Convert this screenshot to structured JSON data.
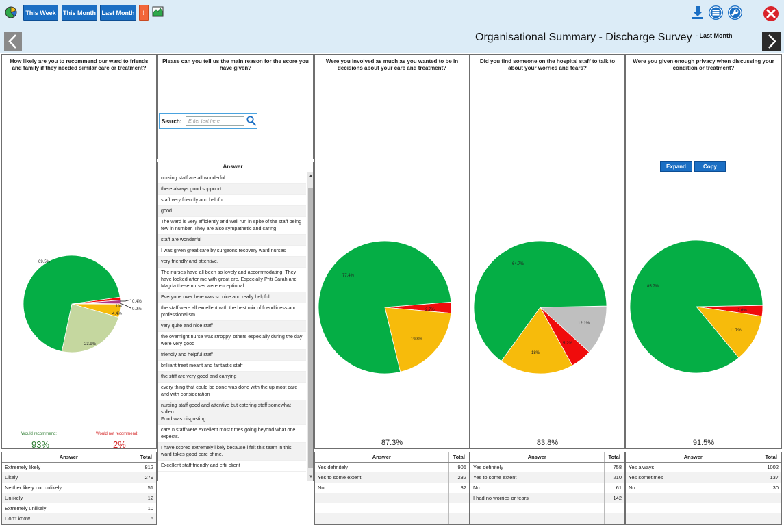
{
  "toolbar": {
    "this_week": "This Week",
    "this_month": "This Month",
    "last_month": "Last Month",
    "alert": "!"
  },
  "header": {
    "title": "Organisational Summary - Discharge Survey",
    "subtitle": "- Last Month"
  },
  "colors": {
    "green": "#05ae45",
    "light_green": "#c5d79f",
    "amber": "#f7bb0b",
    "red": "#f00c0c",
    "grey": "#bfbfbf",
    "toolbar_bg": "#dcecf7",
    "button_blue": "#1b6fc4"
  },
  "q1": {
    "question": "How likely are you to recommend our ward to friends and family if they needed similar care or treatment?",
    "would_recommend_label": "Would recommend:",
    "would_recommend_value": "93%",
    "would_not_label": "Would not recommend:",
    "would_not_value": "2%",
    "pie_labels": [
      "69.5%",
      "23.9%",
      "4.4%",
      "1%",
      "0.4%",
      "0.9%"
    ],
    "table": {
      "head_answer": "Answer",
      "head_total": "Total",
      "rows": [
        {
          "answer": "Extremely likely",
          "total": "812"
        },
        {
          "answer": "Likely",
          "total": "279"
        },
        {
          "answer": "Neither likely nor unlikely",
          "total": "51"
        },
        {
          "answer": "Unlikely",
          "total": "12"
        },
        {
          "answer": "Extremely unlikely",
          "total": "10"
        },
        {
          "answer": "Don't know",
          "total": "5"
        }
      ]
    }
  },
  "q2": {
    "question": "Please can you tell us the main reason for the score you have given?",
    "search_label": "Search:",
    "search_placeholder": "Enter text here",
    "list_header": "Answer",
    "comments": [
      "nursing staff are all wonderful",
      "there always good soppourt",
      "staff very friendly and helpful",
      "good",
      "The ward is very efficiently and well run in spite of  the staff being few in number.  They are also sympathetic and caring",
      "staff are wonderful",
      "I was given great care by surgeons recovery ward nurses",
      "very friendly and attentive.",
      "The nurses have all been so lovely and accommodating. They have looked after me with great are. Especially Priti Sarah and Magda these nurses were exceptional.",
      "Everyone over here was so nice and really helpful.",
      "the staff were all excellent with the best mix of friendliness and professionalism.",
      "very quite and nice staff",
      "the overnight nurse was stroppy. others especially during the day were very good",
      "friendly and helpful staff",
      "brilliant treat meant and fantastic staff",
      "the stiff are very good and carrying",
      "every thing that could be done was done with the up most care and with consideration",
      "nursing staff good and attentive but catering staff somewhat sullen.\nFood was disgusting.",
      "care n staff were excellent most times going beyond what one expects.",
      "I have scored extremely likely because i felt this team in this ward takes good care of me.",
      "Excellent staff friendly and effii client"
    ]
  },
  "q3": {
    "question": "Were you involved as much as you wanted to be in decisions about your care and treatment?",
    "summary": "87.3%",
    "pie_labels": [
      "77.4%",
      "19.8%",
      "2.7%"
    ],
    "table": {
      "head_answer": "Answer",
      "head_total": "Total",
      "rows": [
        {
          "answer": "Yes definitely",
          "total": "905"
        },
        {
          "answer": "Yes to some extent",
          "total": "232"
        },
        {
          "answer": "No",
          "total": "32"
        }
      ]
    }
  },
  "q4": {
    "question": "Did you find someone on the hospital staff to talk to about your worries and fears?",
    "summary": "83.8%",
    "pie_labels": [
      "64.7%",
      "18%",
      "5.2%",
      "12.1%"
    ],
    "table": {
      "head_answer": "Answer",
      "head_total": "Total",
      "rows": [
        {
          "answer": "Yes definitely",
          "total": "758"
        },
        {
          "answer": "Yes to some extent",
          "total": "210"
        },
        {
          "answer": "No",
          "total": "61"
        },
        {
          "answer": "I had no worries or fears",
          "total": "142"
        }
      ]
    }
  },
  "q5": {
    "question": "Were you given enough privacy when discussing your condition or treatment?",
    "expand": "Expand",
    "copy": "Copy",
    "summary": "91.5%",
    "pie_labels": [
      "85.7%",
      "11.7%",
      "2.6%"
    ],
    "table": {
      "head_answer": "Answer",
      "head_total": "Total",
      "rows": [
        {
          "answer": "Yes always",
          "total": "1002"
        },
        {
          "answer": "Yes sometimes",
          "total": "137"
        },
        {
          "answer": "No",
          "total": "30"
        }
      ]
    }
  },
  "chart_data": [
    {
      "type": "pie",
      "title": "How likely are you to recommend our ward to friends and family if they needed similar care or treatment?",
      "categories": [
        "Extremely likely",
        "Likely",
        "Neither likely nor unlikely",
        "Unlikely",
        "Extremely unlikely",
        "Don't know"
      ],
      "values": [
        69.5,
        23.9,
        4.4,
        1.0,
        0.9,
        0.4
      ]
    },
    {
      "type": "pie",
      "title": "Were you involved as much as you wanted to be in decisions about your care and treatment?",
      "categories": [
        "Yes definitely",
        "Yes to some extent",
        "No"
      ],
      "values": [
        77.4,
        19.8,
        2.7
      ]
    },
    {
      "type": "pie",
      "title": "Did you find someone on the hospital staff to talk to about your worries and fears?",
      "categories": [
        "Yes definitely",
        "Yes to some extent",
        "No",
        "I had no worries or fears"
      ],
      "values": [
        64.7,
        18.0,
        5.2,
        12.1
      ]
    },
    {
      "type": "pie",
      "title": "Were you given enough privacy when discussing your condition or treatment?",
      "categories": [
        "Yes always",
        "Yes sometimes",
        "No"
      ],
      "values": [
        85.7,
        11.7,
        2.6
      ]
    }
  ]
}
